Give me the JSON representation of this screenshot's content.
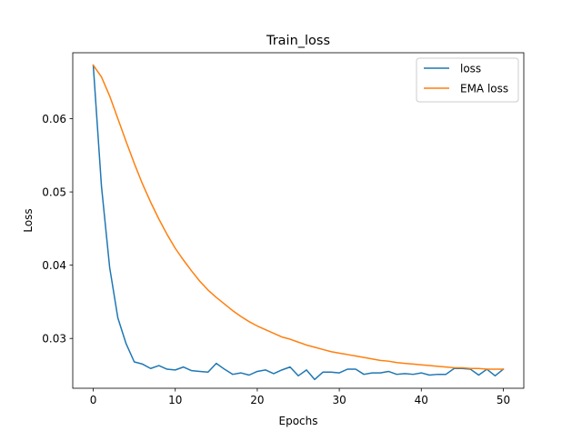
{
  "chart_data": {
    "type": "line",
    "title": "Train_loss",
    "xlabel": "Epochs",
    "ylabel": "Loss",
    "xlim": [
      -2.5,
      52.5
    ],
    "ylim": [
      0.0232,
      0.069
    ],
    "xticks": [
      0,
      10,
      20,
      30,
      40,
      50
    ],
    "yticks": [
      0.03,
      0.04,
      0.05,
      0.06
    ],
    "xtick_labels": [
      "0",
      "10",
      "20",
      "30",
      "40",
      "50"
    ],
    "ytick_labels": [
      "0.03",
      "0.04",
      "0.05",
      "0.06"
    ],
    "grid": false,
    "legend_position": "top-right",
    "x": [
      0,
      1,
      2,
      3,
      4,
      5,
      6,
      7,
      8,
      9,
      10,
      11,
      12,
      13,
      14,
      15,
      16,
      17,
      18,
      19,
      20,
      21,
      22,
      23,
      24,
      25,
      26,
      27,
      28,
      29,
      30,
      31,
      32,
      33,
      34,
      35,
      36,
      37,
      38,
      39,
      40,
      41,
      42,
      43,
      44,
      45,
      46,
      47,
      48,
      49,
      50
    ],
    "series": [
      {
        "name": "loss",
        "color": "#1f77b4",
        "values": [
          0.0673,
          0.0508,
          0.0397,
          0.0328,
          0.0293,
          0.0268,
          0.0265,
          0.0259,
          0.0263,
          0.0258,
          0.0257,
          0.0261,
          0.0256,
          0.0255,
          0.0254,
          0.0266,
          0.0258,
          0.0251,
          0.0253,
          0.025,
          0.0255,
          0.0257,
          0.0252,
          0.0257,
          0.0261,
          0.0249,
          0.0257,
          0.0244,
          0.0254,
          0.0254,
          0.0253,
          0.0258,
          0.0258,
          0.0251,
          0.0253,
          0.0253,
          0.0255,
          0.0251,
          0.0252,
          0.0251,
          0.0253,
          0.025,
          0.0251,
          0.0251,
          0.0259,
          0.0259,
          0.0258,
          0.025,
          0.0258,
          0.0249,
          0.0258
        ]
      },
      {
        "name": "EMA loss",
        "color": "#ff7f0e",
        "values": [
          0.0673,
          0.0657,
          0.0631,
          0.06,
          0.0569,
          0.0539,
          0.0511,
          0.0486,
          0.0463,
          0.0442,
          0.0423,
          0.0407,
          0.0392,
          0.0378,
          0.0366,
          0.0356,
          0.0347,
          0.0338,
          0.033,
          0.0323,
          0.0317,
          0.0312,
          0.0307,
          0.0302,
          0.0299,
          0.0295,
          0.0291,
          0.0288,
          0.0285,
          0.0282,
          0.028,
          0.0278,
          0.0276,
          0.0274,
          0.0272,
          0.027,
          0.0269,
          0.0267,
          0.0266,
          0.0265,
          0.0264,
          0.0263,
          0.0262,
          0.0261,
          0.026,
          0.026,
          0.0259,
          0.0259,
          0.0258,
          0.0258,
          0.0258
        ]
      }
    ]
  }
}
